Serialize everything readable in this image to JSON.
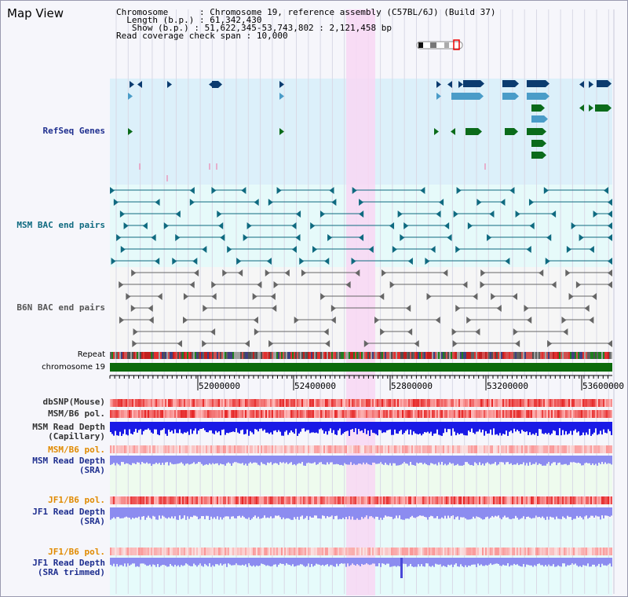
{
  "page": {
    "title": "Map View"
  },
  "info": {
    "chromosome_key": "Chromosome",
    "chromosome_value": "Chromosome 19, reference assembly (C57BL/6J) (Build 37)",
    "length_key": "Length (b.p.)",
    "length_value": "61,342,430",
    "show_key": "Show (b.p.)",
    "show_value": "51,622,345-53,743,802 : 2,121,458 bp",
    "coverage_key": "Read coverage check span",
    "coverage_value": "10,000"
  },
  "tracks": {
    "refseq": "RefSeq Genes",
    "msm_bac": "MSM BAC end pairs",
    "b6n_bac": "B6N BAC end pairs",
    "repeat": "Repeat",
    "chromosome": "chromosome 19",
    "dbsnp": "dbSNP(Mouse)",
    "msm_b6_pol": "MSM/B6 pol.",
    "msm_depth_cap_1": "MSM Read Depth",
    "msm_depth_cap_2": "(Capillary)",
    "msm_b6_pol_sra": "MSM/B6 pol.",
    "msm_depth_sra_1": "MSM Read Depth",
    "msm_depth_sra_2": "(SRA)",
    "jf1_b6_pol": "JF1/B6 pol.",
    "jf1_depth_sra_1": "JF1 Read Depth",
    "jf1_depth_sra_2": "(SRA)",
    "jf1_b6_pol_trim": "JF1/B6 pol.",
    "jf1_depth_trim_1": "JF1 Read Depth",
    "jf1_depth_trim_2": "(SRA trimmed)"
  },
  "axis": {
    "ticks": [
      "52000000",
      "52400000",
      "52800000",
      "53200000",
      "53600000"
    ]
  },
  "colors": {
    "refseq_bg": "#dcf0fa",
    "bac_bg": "#e6fafa",
    "b6n_bg": "#f6f6f6",
    "highlight": "#f8d7f3",
    "refseq_dark": "#0b3b6f",
    "refseq_mid": "#4a9cc8",
    "refseq_green": "#0b6b1a",
    "msm_line": "#0f6a80",
    "b6n_line": "#666666",
    "chrom": "#0c6a0c",
    "depth_cap": "#1a1ae6",
    "depth_sra": "#8c8cf0",
    "label_teal": "#0f6a80",
    "label_navy": "#1f2f8f",
    "label_orange": "#e08a00"
  }
}
